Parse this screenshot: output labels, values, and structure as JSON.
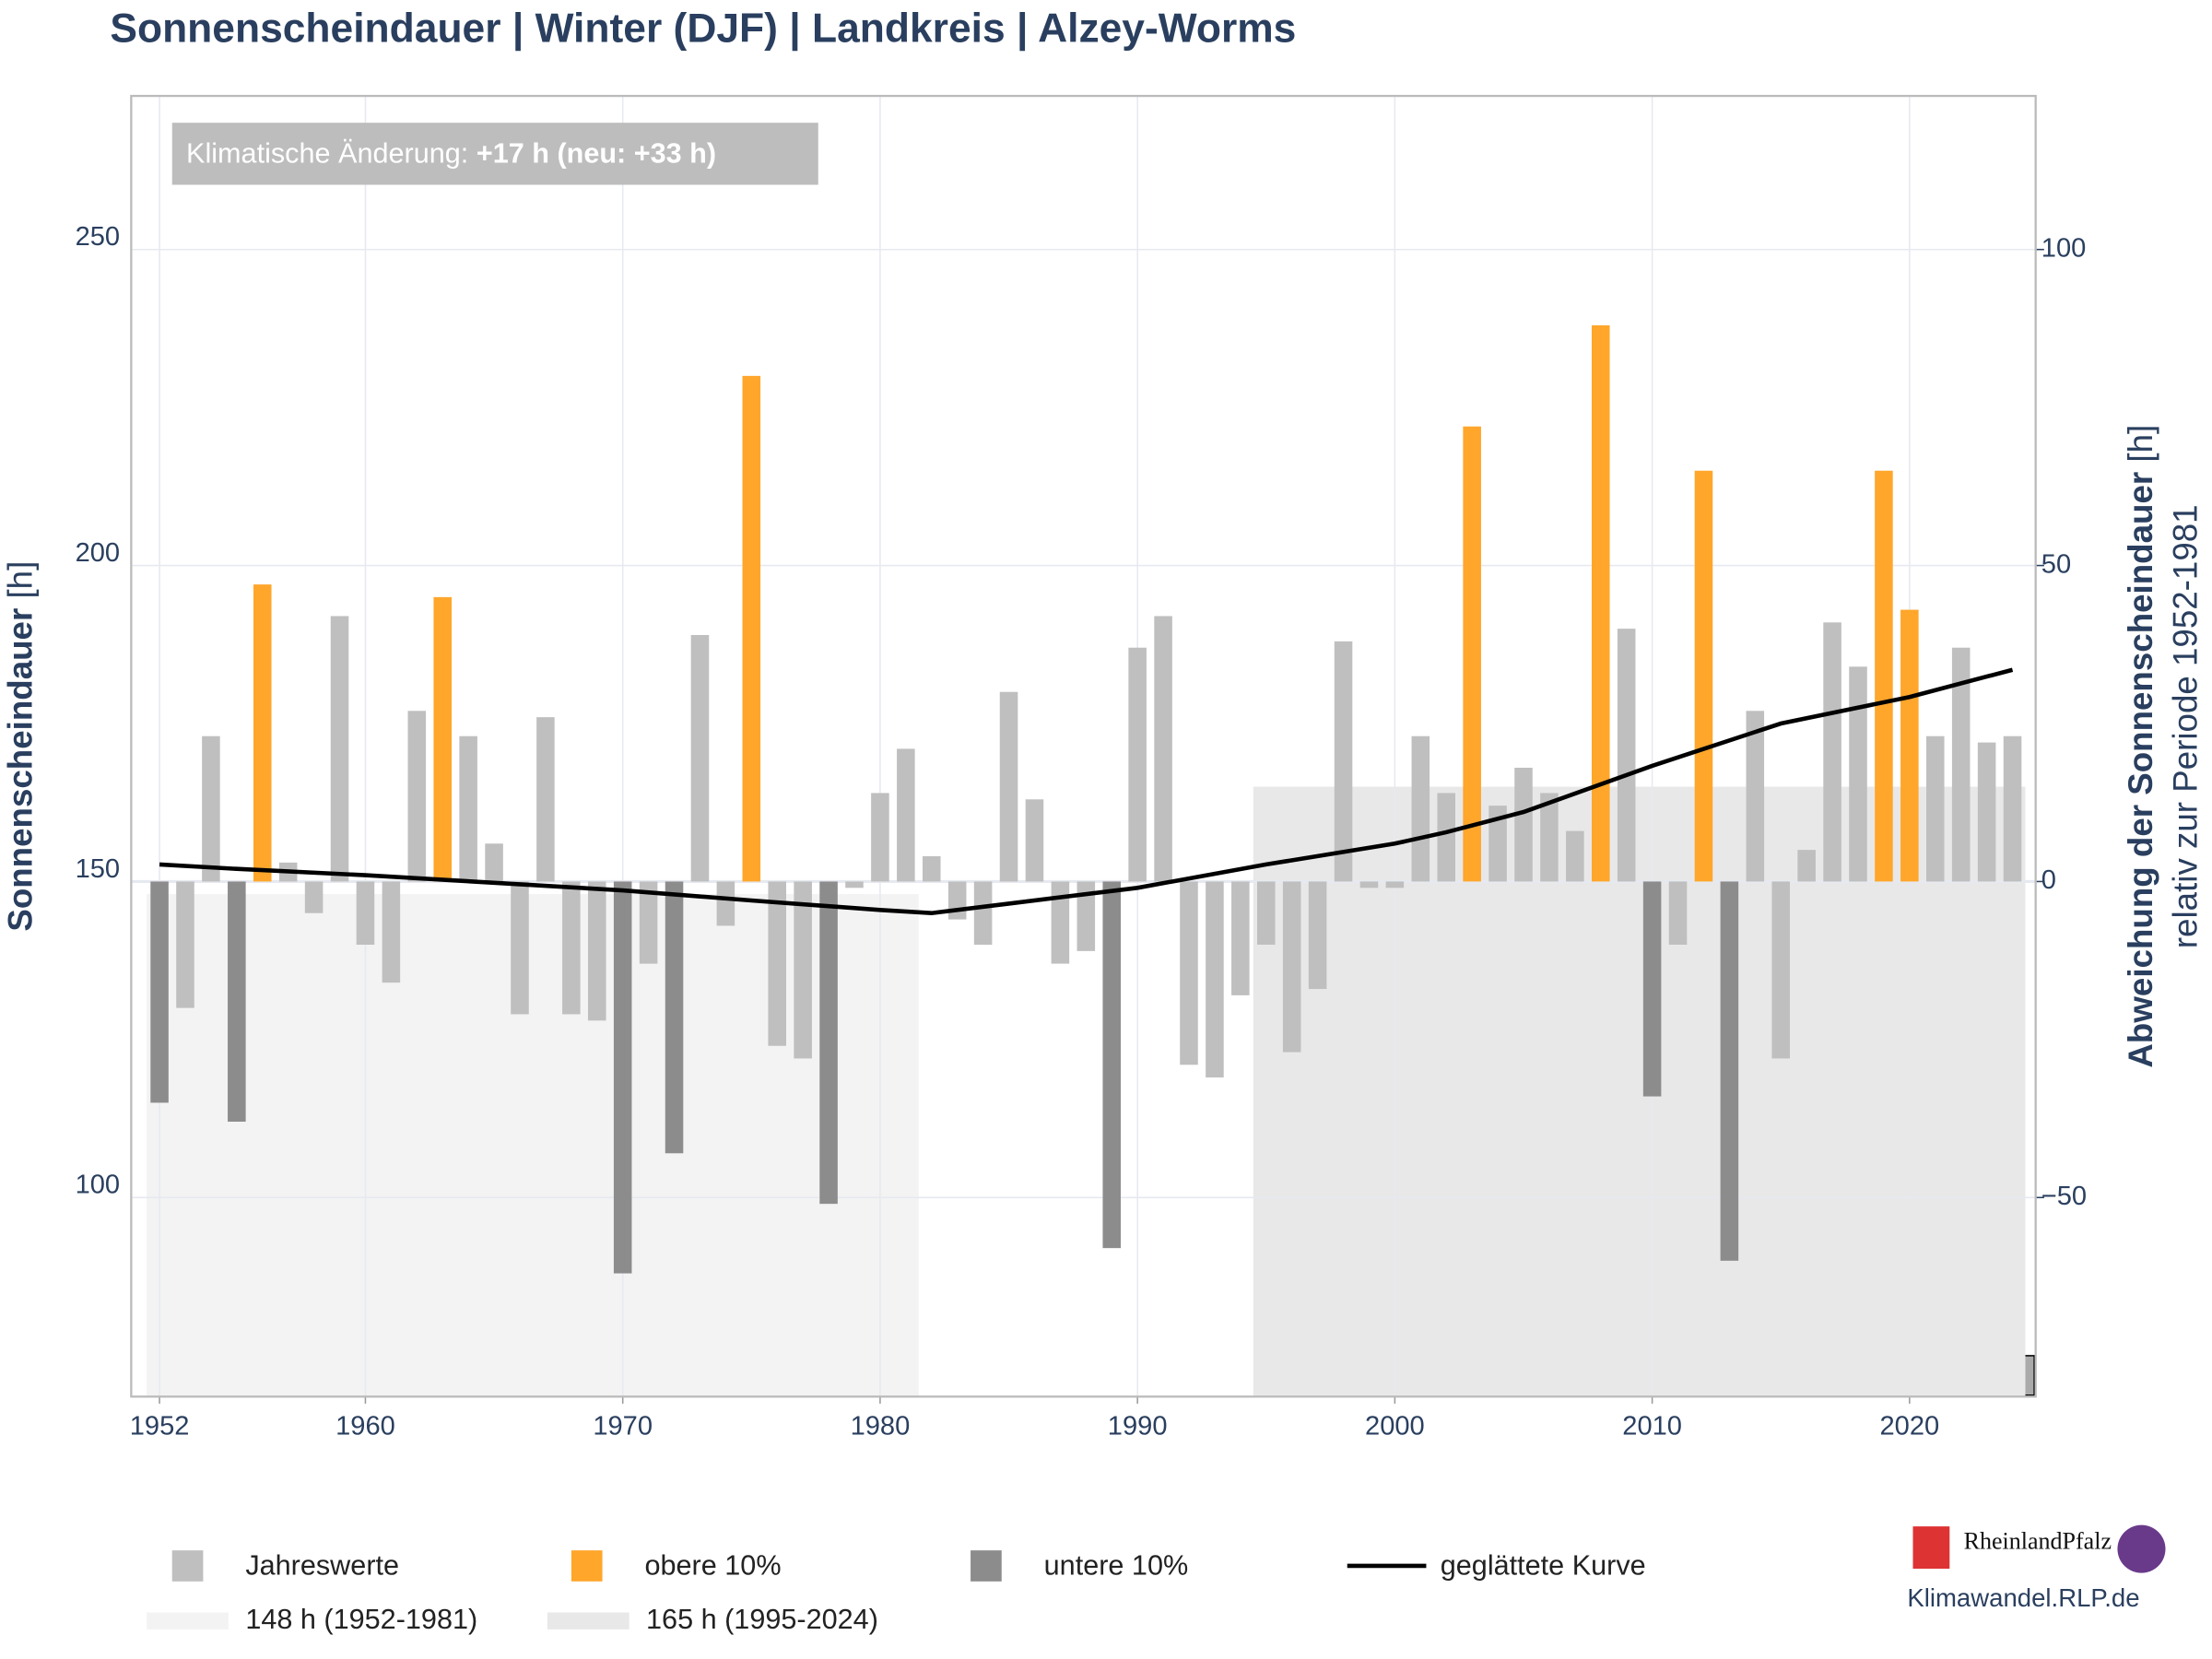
{
  "chart_data": {
    "type": "bar",
    "title": "Sonnenscheindauer | Winter (DJF) | Landkreis | Alzey-Worms",
    "annotation": {
      "label": "Klimatische Änderung:",
      "value": "+17 h (neu: +33 h)"
    },
    "y_label": {
      "name": "Sonnenscheindauer",
      "unit": "[h]"
    },
    "y2_label": {
      "name": "Abweichung der Sonnenscheindauer",
      "unit": "[h]",
      "note": "relativ zur Periode 1952-1981"
    },
    "source": "Klimawandel.RLP.de",
    "logo": "RheinlandPfalz",
    "x": [
      1952,
      1953,
      1954,
      1955,
      1956,
      1957,
      1958,
      1959,
      1960,
      1961,
      1962,
      1963,
      1964,
      1965,
      1966,
      1967,
      1968,
      1969,
      1970,
      1971,
      1972,
      1973,
      1974,
      1975,
      1976,
      1977,
      1978,
      1979,
      1980,
      1981,
      1982,
      1983,
      1984,
      1985,
      1986,
      1987,
      1988,
      1989,
      1990,
      1991,
      1992,
      1993,
      1994,
      1995,
      1996,
      1997,
      1998,
      1999,
      2000,
      2001,
      2002,
      2003,
      2004,
      2005,
      2006,
      2007,
      2008,
      2009,
      2010,
      2011,
      2012,
      2013,
      2014,
      2015,
      2016,
      2017,
      2018,
      2019,
      2020,
      2021,
      2022,
      2023,
      2024
    ],
    "series": [
      {
        "name": "Jahreswerte",
        "color": "#bfbfbf",
        "values": [
          null,
          130,
          173,
          null,
          null,
          153,
          145,
          192,
          140,
          134,
          177,
          null,
          173,
          156,
          129,
          176,
          129,
          128,
          null,
          137,
          null,
          189,
          143,
          null,
          124,
          122,
          null,
          149,
          164,
          171,
          154,
          144,
          140,
          180,
          163,
          137,
          139,
          null,
          187,
          192,
          121,
          119,
          132,
          140,
          123,
          133,
          188,
          149,
          149,
          173,
          164,
          null,
          162,
          168,
          164,
          158,
          null,
          190,
          null,
          140,
          null,
          null,
          177,
          122,
          155,
          191,
          184,
          null,
          null,
          173,
          187,
          172,
          173
        ]
      },
      {
        "name": "obere 10%",
        "color": "#ffa62b",
        "values": [
          null,
          null,
          null,
          null,
          197,
          null,
          null,
          null,
          null,
          null,
          null,
          195,
          null,
          null,
          null,
          null,
          null,
          null,
          null,
          null,
          null,
          null,
          null,
          230,
          null,
          null,
          null,
          null,
          null,
          null,
          null,
          null,
          null,
          null,
          null,
          null,
          null,
          null,
          null,
          null,
          null,
          null,
          null,
          null,
          null,
          null,
          null,
          null,
          null,
          null,
          null,
          222,
          null,
          null,
          null,
          null,
          238,
          null,
          null,
          null,
          215,
          null,
          null,
          null,
          null,
          null,
          null,
          215,
          193,
          null,
          null,
          null,
          null
        ]
      },
      {
        "name": "untere 10%",
        "color": "#8c8c8c",
        "values": [
          115,
          null,
          null,
          112,
          null,
          null,
          null,
          null,
          null,
          null,
          null,
          null,
          null,
          null,
          null,
          null,
          null,
          null,
          88,
          null,
          107,
          null,
          null,
          null,
          null,
          null,
          99,
          null,
          null,
          null,
          null,
          null,
          null,
          null,
          null,
          null,
          null,
          92,
          null,
          null,
          null,
          null,
          null,
          null,
          null,
          null,
          null,
          null,
          null,
          null,
          null,
          null,
          null,
          null,
          null,
          null,
          null,
          null,
          116,
          null,
          null,
          90,
          null,
          null,
          null,
          null,
          null,
          null,
          null,
          null,
          null,
          null,
          null
        ]
      },
      {
        "name": "geglättete Kurve",
        "type": "line",
        "color": "#000000",
        "x": [
          1952,
          1955,
          1960,
          1965,
          1970,
          1975,
          1980,
          1982,
          1985,
          1990,
          1995,
          2000,
          2002,
          2005,
          2010,
          2015,
          2020,
          2024
        ],
        "values": [
          152.7,
          152,
          151,
          149.8,
          148.6,
          147,
          145.5,
          145,
          146.5,
          149,
          152.7,
          156,
          157.8,
          161,
          168.3,
          175,
          179.2,
          183.5
        ]
      }
    ],
    "periods": [
      {
        "label": "148 h (1952-1981)",
        "value": 148,
        "start": 1952,
        "end": 1981,
        "color": "#f3f3f3"
      },
      {
        "label": "165 h (1995-2024)",
        "value": 165,
        "start": 1995,
        "end": 2024,
        "color": "#e8e8e8"
      }
    ],
    "xlim": [
      1950.9,
      2024.9
    ],
    "xticks": [
      1952,
      1960,
      1970,
      1980,
      1990,
      2000,
      2010,
      2020
    ],
    "ylim": [
      68.5,
      274.3
    ],
    "yticks": [
      100,
      150,
      200,
      250
    ],
    "y2lim": [
      -81.5,
      124.3
    ],
    "y2ticks": [
      {
        "value": -50,
        "label": "−50"
      },
      0,
      50,
      100
    ],
    "grid": true
  }
}
